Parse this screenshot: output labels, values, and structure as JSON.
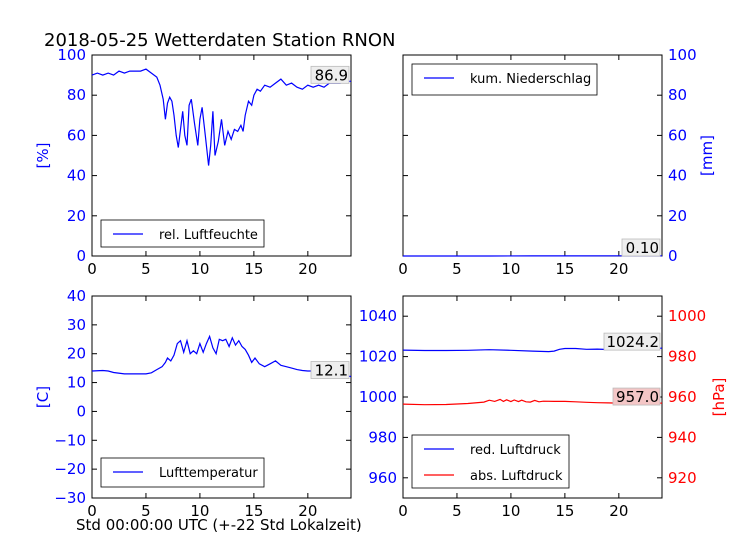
{
  "figure": {
    "title": "2018-05-25 Wetterdaten Station RNON",
    "x_caption": "Std 00:00:00 UTC (+-22 Std Lokalzeit)"
  },
  "chart_data": [
    {
      "type": "line",
      "ylabel": "[%]",
      "ylabel_color": "#0000ff",
      "xlim": [
        0,
        24
      ],
      "ylim": [
        0,
        100
      ],
      "xticks": [
        0,
        5,
        10,
        15,
        20
      ],
      "yticks": [
        0,
        20,
        40,
        60,
        80,
        100
      ],
      "last_value_label": "86.9",
      "legend_position": "lower-left",
      "series": [
        {
          "name": "rel. Luftfeuchte",
          "color": "#0000ff",
          "x": [
            0,
            0.5,
            1,
            1.5,
            2,
            2.5,
            3,
            3.5,
            4,
            4.5,
            5,
            5.5,
            6,
            6.3,
            6.6,
            6.8,
            7,
            7.2,
            7.4,
            7.6,
            7.8,
            8,
            8.2,
            8.4,
            8.6,
            8.8,
            9,
            9.2,
            9.5,
            9.8,
            10,
            10.2,
            10.5,
            10.8,
            11,
            11.2,
            11.4,
            11.7,
            12,
            12.3,
            12.6,
            12.9,
            13.2,
            13.5,
            13.8,
            14,
            14.2,
            14.5,
            14.8,
            15,
            15.3,
            15.6,
            16,
            16.5,
            17,
            17.5,
            18,
            18.5,
            19,
            19.5,
            20,
            20.5,
            21,
            21.5,
            22,
            22.5,
            23,
            23.5,
            24
          ],
          "values": [
            90,
            91,
            90,
            91,
            90,
            92,
            91,
            92,
            92,
            92,
            93,
            91,
            89,
            85,
            78,
            68,
            76,
            79,
            77,
            70,
            60,
            54,
            63,
            72,
            60,
            55,
            75,
            78,
            66,
            55,
            68,
            74,
            60,
            45,
            55,
            72,
            50,
            57,
            68,
            55,
            62,
            58,
            63,
            62,
            65,
            62,
            70,
            77,
            75,
            80,
            83,
            82,
            85,
            84,
            86,
            88,
            85,
            86,
            84,
            83,
            85,
            84,
            85,
            84,
            86,
            86,
            86,
            87,
            86.9
          ]
        }
      ]
    },
    {
      "type": "line",
      "ylabel": "[mm]",
      "ylabel_color": "#0000ff",
      "xlim": [
        0,
        24
      ],
      "ylim": [
        0,
        100
      ],
      "xticks": [
        0,
        5,
        10,
        15,
        20
      ],
      "yticks": [
        0,
        20,
        40,
        60,
        80,
        100
      ],
      "last_value_label": "0.10",
      "legend_position": "upper-left",
      "series": [
        {
          "name": "kum. Niederschlag",
          "color": "#0000ff",
          "x": [
            0,
            4,
            8,
            12,
            16,
            20,
            24
          ],
          "values": [
            0,
            0,
            0,
            0.05,
            0.05,
            0.1,
            0.1
          ]
        }
      ]
    },
    {
      "type": "line",
      "ylabel": "[C]",
      "ylabel_color": "#0000ff",
      "xlim": [
        0,
        24
      ],
      "ylim": [
        -30,
        40
      ],
      "xticks": [
        0,
        5,
        10,
        15,
        20
      ],
      "yticks": [
        -30,
        -20,
        -10,
        0,
        10,
        20,
        30,
        40
      ],
      "last_value_label": "12.1",
      "legend_position": "lower-left",
      "series": [
        {
          "name": "Lufttemperatur",
          "color": "#0000ff",
          "x": [
            0,
            1,
            1.5,
            2,
            3,
            4,
            5,
            5.5,
            6,
            6.5,
            6.8,
            7,
            7.3,
            7.6,
            7.9,
            8.2,
            8.5,
            8.8,
            9.1,
            9.4,
            9.7,
            10,
            10.3,
            10.6,
            10.9,
            11.2,
            11.5,
            11.8,
            12.1,
            12.4,
            12.7,
            13,
            13.3,
            13.6,
            13.9,
            14.2,
            14.5,
            14.8,
            15.1,
            15.5,
            16,
            16.5,
            17,
            17.5,
            18,
            18.5,
            19,
            19.5,
            20,
            20.5,
            21,
            22,
            23,
            24
          ],
          "values": [
            14,
            14.2,
            14,
            13.5,
            13,
            13,
            13,
            13.4,
            14.5,
            15.5,
            17,
            18.5,
            17.5,
            19.5,
            23.5,
            24.5,
            20.5,
            24.5,
            20,
            21,
            20,
            23.5,
            20.5,
            23.5,
            26,
            22,
            20,
            25,
            24.5,
            25,
            22.5,
            25.5,
            23,
            24.5,
            22.5,
            21.5,
            19.5,
            17,
            18.5,
            16.5,
            15.5,
            16.5,
            17.5,
            16,
            15.5,
            15,
            14.5,
            14.2,
            14,
            14,
            13.8,
            13,
            12.5,
            12.1
          ]
        }
      ]
    },
    {
      "type": "line",
      "dual_axis": true,
      "ylabel_right": "[hPa]",
      "ylabel_right_color": "#ff0000",
      "xlim": [
        0,
        24
      ],
      "ylim_left": [
        950,
        1050
      ],
      "ylim_right": [
        910,
        1010
      ],
      "xticks": [
        0,
        5,
        10,
        15,
        20
      ],
      "yticks_left": [
        960,
        980,
        1000,
        1020,
        1040
      ],
      "yticks_right": [
        920,
        940,
        960,
        980,
        1000
      ],
      "legend_position": "lower-left",
      "series": [
        {
          "name": "red. Luftdruck",
          "color": "#0000ff",
          "axis": "left",
          "last_value_label": "1024.2",
          "x": [
            0,
            2,
            4,
            6,
            8,
            10,
            12,
            13.5,
            14,
            14.5,
            15,
            16,
            17,
            18,
            19,
            20,
            21,
            22,
            23,
            24
          ],
          "values": [
            1023.2,
            1023,
            1023,
            1023.1,
            1023.4,
            1023.1,
            1022.7,
            1022.5,
            1022.7,
            1023.6,
            1024,
            1024,
            1023.6,
            1023.7,
            1023.5,
            1023.3,
            1023.3,
            1023.5,
            1023.8,
            1024.2
          ]
        },
        {
          "name": "abs. Luftdruck",
          "color": "#ff0000",
          "axis": "right",
          "last_value_label": "957.0",
          "x": [
            0,
            2,
            4,
            6,
            7.5,
            8,
            8.5,
            9,
            9.3,
            9.6,
            10,
            10.3,
            10.7,
            11,
            11.4,
            11.8,
            12.2,
            12.6,
            13,
            14,
            15,
            16,
            17,
            18,
            19,
            20,
            21,
            22,
            23,
            24
          ],
          "values": [
            956.5,
            956.2,
            956.3,
            956.8,
            957.5,
            958.4,
            957.8,
            958.8,
            957.8,
            958.6,
            957.7,
            958.5,
            957.7,
            958.4,
            957.6,
            957.5,
            958.3,
            957.6,
            957.9,
            957.8,
            957.8,
            957.6,
            957.4,
            957.2,
            957.1,
            957,
            957,
            957.1,
            957,
            957
          ]
        }
      ]
    }
  ]
}
